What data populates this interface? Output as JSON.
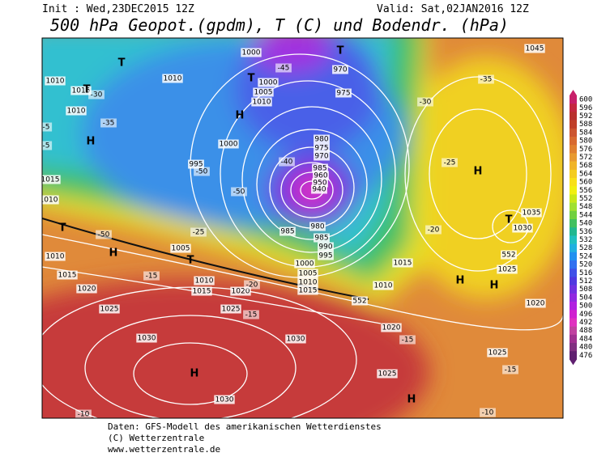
{
  "header": {
    "init": "Init : Wed,23DEC2015 12Z",
    "valid": "Valid: Sat,02JAN2016 12Z",
    "title": "500 hPa Geopot.(gpdm), T (C) und Bodendr. (hPa)"
  },
  "map_labels": {
    "centers": [
      "T",
      "T",
      "H",
      "H",
      "T",
      "H",
      "H",
      "T",
      "H",
      "H",
      "H",
      "T",
      "H",
      "T",
      "T"
    ],
    "isobars": [
      "1010",
      "1015",
      "1010",
      "1010",
      "1015",
      "1010",
      "1000",
      "1000",
      "1005",
      "1010",
      "1000",
      "995",
      "970",
      "975",
      "980",
      "975",
      "970",
      "985",
      "960",
      "950",
      "940",
      "985",
      "980",
      "985",
      "990",
      "995",
      "1000",
      "1005",
      "1010",
      "1015",
      "1005",
      "1010",
      "1015",
      "1010",
      "1015",
      "1020",
      "1020",
      "1025",
      "1025",
      "1030",
      "1030",
      "1025",
      "1025",
      "1030",
      "1015",
      "1010",
      "1020",
      "1025",
      "1030",
      "1035",
      "1020",
      "1045",
      "552",
      "552"
    ],
    "temperatures": [
      "-50",
      "-50",
      "-45",
      "-40",
      "-35",
      "-30",
      "-25",
      "-20",
      "-15",
      "-15",
      "-50",
      "-25",
      "-20",
      "-15",
      "-10",
      "-10",
      "-15",
      "-35",
      "-30",
      "-5",
      "-5"
    ]
  },
  "colorbar": {
    "labels": [
      600,
      596,
      592,
      588,
      584,
      580,
      576,
      572,
      568,
      564,
      560,
      556,
      552,
      548,
      544,
      540,
      536,
      532,
      528,
      524,
      520,
      516,
      512,
      508,
      504,
      500,
      496,
      492,
      488,
      484,
      480,
      476
    ],
    "colors": [
      "#c8206a",
      "#c42840",
      "#b8302e",
      "#c0402a",
      "#cc5530",
      "#d86a30",
      "#e08030",
      "#e89a30",
      "#f0b428",
      "#f4cc20",
      "#f8e018",
      "#f0f010",
      "#c8e818",
      "#a0e030",
      "#70d040",
      "#40c060",
      "#20b890",
      "#20c0c0",
      "#20b0e0",
      "#2090f0",
      "#3070f0",
      "#4050e8",
      "#5038e0",
      "#7030e0",
      "#9028e0",
      "#b020e0",
      "#d020d0",
      "#e030c0",
      "#c040a0",
      "#a03090",
      "#803080",
      "#602070"
    ]
  },
  "footer": [
    "Daten: GFS-Modell des amerikanischen Wetterdienstes",
    "(C) Wetterzentrale",
    "www.wetterzentrale.de"
  ]
}
